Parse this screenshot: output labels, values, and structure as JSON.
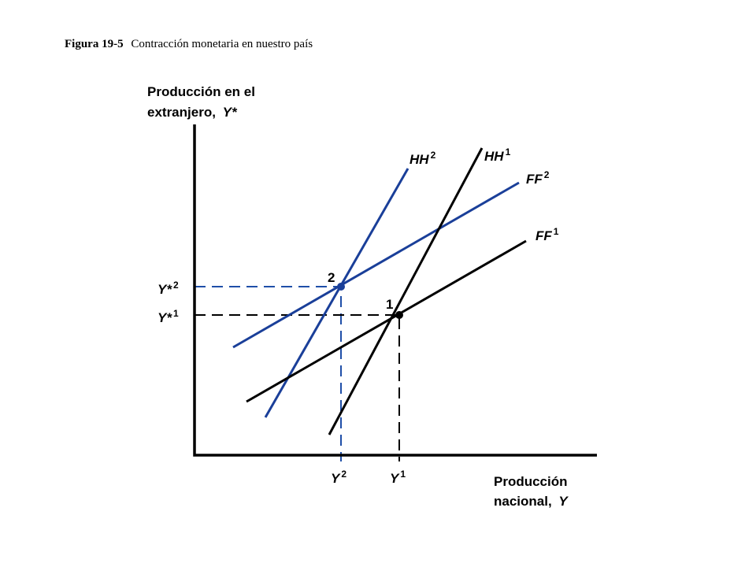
{
  "caption": {
    "label": "Figura 19-5",
    "text": "Contracción monetaria en nuestro país"
  },
  "y_axis_label": {
    "line1": "Producción en el",
    "line2": "extranjero,",
    "variable": "Y*"
  },
  "x_axis_label": {
    "line1": "Producción",
    "line2": "nacional,",
    "variable": "Y"
  },
  "curves": [
    {
      "base": "HH",
      "sup": "2"
    },
    {
      "base": "HH",
      "sup": "1"
    },
    {
      "base": "FF",
      "sup": "2"
    },
    {
      "base": "FF",
      "sup": "1"
    }
  ],
  "points": [
    "2",
    "1"
  ],
  "y_ticks": [
    {
      "base": "Y*",
      "sup": "2"
    },
    {
      "base": "Y*",
      "sup": "1"
    }
  ],
  "x_ticks": [
    {
      "base": "Y",
      "sup": "2"
    },
    {
      "base": "Y",
      "sup": "1"
    }
  ]
}
